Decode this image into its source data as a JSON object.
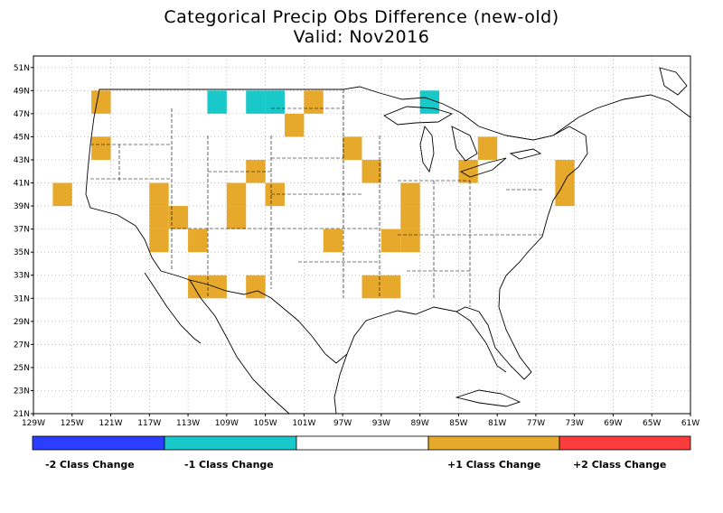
{
  "title": "Categorical Precip Obs Difference (new-old)",
  "subtitle": "Valid: Nov2016",
  "colors": {
    "minus2": "#2b3dff",
    "minus1": "#19c8c8",
    "zero": "#ffffff",
    "plus1": "#e6a92b",
    "plus2": "#fa3c3c"
  },
  "lat_labels": [
    "21N",
    "23N",
    "25N",
    "27N",
    "29N",
    "31N",
    "33N",
    "35N",
    "37N",
    "39N",
    "41N",
    "43N",
    "45N",
    "47N",
    "49N",
    "51N"
  ],
  "lon_labels": [
    "129W",
    "125W",
    "121W",
    "117W",
    "113W",
    "109W",
    "105W",
    "101W",
    "97W",
    "93W",
    "89W",
    "85W",
    "81W",
    "77W",
    "73W",
    "69W",
    "65W",
    "61W"
  ],
  "legend": {
    "labels": [
      "-2 Class Change",
      "-1 Class Change",
      "+1 Class Change",
      "+2 Class Change"
    ]
  },
  "chart_data": {
    "type": "heatmap",
    "grid_resolution_deg": 2,
    "xlim": [
      -129,
      -61
    ],
    "ylim": [
      21,
      52
    ],
    "cells": [
      {
        "lon": -122,
        "lat": 48,
        "v": 1
      },
      {
        "lon": -110,
        "lat": 48,
        "v": -1
      },
      {
        "lon": -106,
        "lat": 48,
        "v": -1
      },
      {
        "lon": -104,
        "lat": 48,
        "v": -1
      },
      {
        "lon": -100,
        "lat": 48,
        "v": 1
      },
      {
        "lon": -88,
        "lat": 48,
        "v": -1
      },
      {
        "lon": -102,
        "lat": 46,
        "v": 1
      },
      {
        "lon": -122,
        "lat": 44,
        "v": 1
      },
      {
        "lon": -96,
        "lat": 44,
        "v": 1
      },
      {
        "lon": -82,
        "lat": 44,
        "v": 1
      },
      {
        "lon": -106,
        "lat": 42,
        "v": 1
      },
      {
        "lon": -94,
        "lat": 42,
        "v": 1
      },
      {
        "lon": -84,
        "lat": 42,
        "v": 1
      },
      {
        "lon": -74,
        "lat": 42,
        "v": 1
      },
      {
        "lon": -126,
        "lat": 40,
        "v": 1
      },
      {
        "lon": -116,
        "lat": 40,
        "v": 1
      },
      {
        "lon": -108,
        "lat": 40,
        "v": 1
      },
      {
        "lon": -104,
        "lat": 40,
        "v": 1
      },
      {
        "lon": -90,
        "lat": 40,
        "v": 1
      },
      {
        "lon": -74,
        "lat": 40,
        "v": 1
      },
      {
        "lon": -116,
        "lat": 38,
        "v": 1
      },
      {
        "lon": -114,
        "lat": 38,
        "v": 1
      },
      {
        "lon": -108,
        "lat": 38,
        "v": 1
      },
      {
        "lon": -90,
        "lat": 38,
        "v": 1
      },
      {
        "lon": -116,
        "lat": 36,
        "v": 1
      },
      {
        "lon": -112,
        "lat": 36,
        "v": 1
      },
      {
        "lon": -98,
        "lat": 36,
        "v": 1
      },
      {
        "lon": -92,
        "lat": 36,
        "v": 1
      },
      {
        "lon": -90,
        "lat": 36,
        "v": 1
      },
      {
        "lon": -112,
        "lat": 32,
        "v": 1
      },
      {
        "lon": -110,
        "lat": 32,
        "v": 1
      },
      {
        "lon": -106,
        "lat": 32,
        "v": 1
      },
      {
        "lon": -94,
        "lat": 32,
        "v": 1
      },
      {
        "lon": -92,
        "lat": 32,
        "v": 1
      }
    ]
  }
}
